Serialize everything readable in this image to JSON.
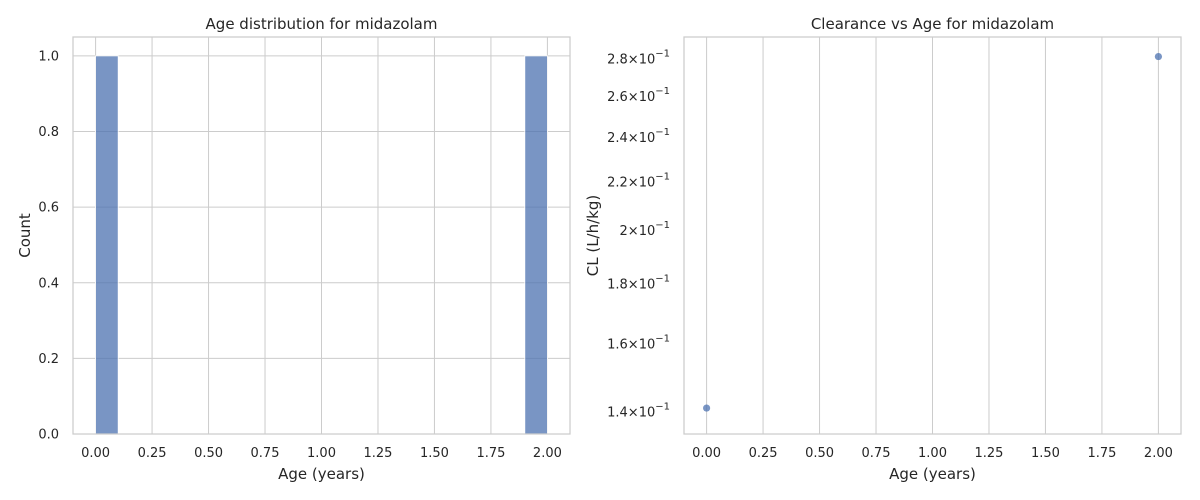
{
  "chart_data": [
    {
      "type": "bar",
      "title": "Age distribution for midazolam",
      "xlabel": "Age (years)",
      "ylabel": "Count",
      "xlim": [
        -0.1,
        2.1
      ],
      "ylim": [
        0,
        1.05
      ],
      "xticks": [
        "0.00",
        "0.25",
        "0.50",
        "0.75",
        "1.00",
        "1.25",
        "1.50",
        "1.75",
        "2.00"
      ],
      "yticks": [
        "0.0",
        "0.2",
        "0.4",
        "0.6",
        "0.8",
        "1.0"
      ],
      "grid": true,
      "color": "#4C72B0",
      "bins": [
        {
          "x0": 0.0,
          "x1": 0.1,
          "count": 1
        },
        {
          "x0": 1.9,
          "x1": 2.0,
          "count": 1
        }
      ]
    },
    {
      "type": "scatter",
      "title": "Clearance vs Age for midazolam",
      "xlabel": "Age (years)",
      "ylabel": "CL (L/h/kg)",
      "xlim": [
        -0.1,
        2.1
      ],
      "ylim": [
        0.134,
        0.292
      ],
      "yscale": "log",
      "xticks": [
        "0.00",
        "0.25",
        "0.50",
        "0.75",
        "1.00",
        "1.25",
        "1.50",
        "1.75",
        "2.00"
      ],
      "yticks": [
        {
          "value": 0.14,
          "mantissa": "1.4",
          "base": "10",
          "exponent": "−1"
        },
        {
          "value": 0.16,
          "mantissa": "1.6",
          "base": "10",
          "exponent": "−1"
        },
        {
          "value": 0.18,
          "mantissa": "1.8",
          "base": "10",
          "exponent": "−1"
        },
        {
          "value": 0.2,
          "mantissa": "2",
          "base": "10",
          "exponent": "−1"
        },
        {
          "value": 0.22,
          "mantissa": "2.2",
          "base": "10",
          "exponent": "−1"
        },
        {
          "value": 0.24,
          "mantissa": "2.4",
          "base": "10",
          "exponent": "−1"
        },
        {
          "value": 0.26,
          "mantissa": "2.6",
          "base": "10",
          "exponent": "−1"
        },
        {
          "value": 0.28,
          "mantissa": "2.8",
          "base": "10",
          "exponent": "−1"
        }
      ],
      "grid": true,
      "color": "#4C72B0",
      "points": [
        {
          "x": 0.0,
          "y": 0.141
        },
        {
          "x": 2.0,
          "y": 0.281
        }
      ]
    }
  ]
}
